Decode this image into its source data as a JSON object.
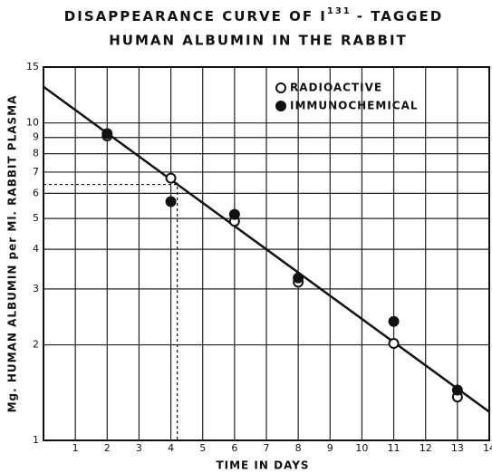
{
  "chart_data": {
    "type": "scatter",
    "title": "DISAPPEARANCE CURVE OF I",
    "title_superscript": "131",
    "title_end": "- TAGGED",
    "title_line2": "HUMAN ALBUMIN IN THE RABBIT",
    "x_label": "TIME IN DAYS",
    "y_label": "Mg. HUMAN ALBUMIN per Ml. RABBIT PLASMA",
    "log_y": true,
    "grid": true,
    "legend": "upper right",
    "xlim": [
      0,
      14
    ],
    "xticks": [
      1,
      2,
      3,
      4,
      5,
      6,
      7,
      8,
      9,
      10,
      11,
      12,
      13,
      14
    ],
    "ylim": [
      1,
      15
    ],
    "yticks": [
      1,
      2,
      3,
      4,
      5,
      6,
      7,
      8,
      9,
      10,
      15
    ],
    "series": [
      {
        "name": "RADIOACTIVE",
        "marker": "open",
        "color": "#111111",
        "x": [
          2,
          4,
          6,
          8,
          11,
          13
        ],
        "values": [
          9.1,
          6.7,
          4.9,
          3.15,
          2.02,
          1.37
        ]
      },
      {
        "name": "IMMUNOCHEMICAL",
        "marker": "filled",
        "color": "#111111",
        "x": [
          2,
          4,
          6,
          8,
          11,
          13
        ],
        "values": [
          9.25,
          5.65,
          5.15,
          3.25,
          2.37,
          1.44
        ]
      }
    ],
    "fit_line": {
      "x": [
        0,
        14
      ],
      "values": [
        13,
        1.23
      ]
    },
    "reference": {
      "x": 4.2,
      "y": 6.4
    }
  }
}
